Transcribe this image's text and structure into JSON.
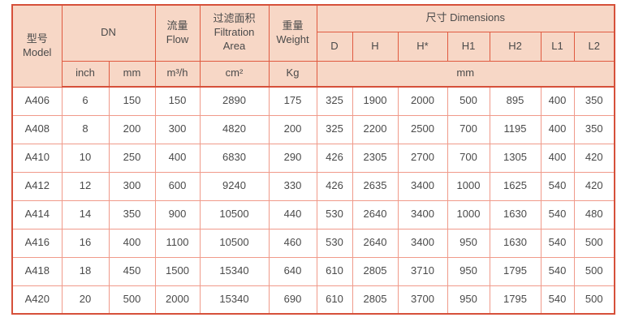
{
  "colors": {
    "header_bg": "#f7d7c6",
    "border_strong": "#d6503a",
    "border_header": "#e05a40",
    "border_light": "#f09a8a",
    "text": "#4a4a4a"
  },
  "header": {
    "model": {
      "zh": "型号",
      "en": "Model"
    },
    "dn": "DN",
    "flow": {
      "zh": "流量",
      "en": "Flow"
    },
    "filtration": {
      "zh": "过滤面积",
      "en": "Filtration Area"
    },
    "weight": {
      "zh": "重量",
      "en": "Weight"
    },
    "dimensions": "尺寸 Dimensions",
    "dim_cols": [
      "D",
      "H",
      "H*",
      "H1",
      "H2",
      "L1",
      "L2"
    ],
    "units": {
      "inch": "inch",
      "mm": "mm",
      "flow": "m³/h",
      "area": "cm²",
      "weight": "Kg",
      "dims": "mm"
    }
  },
  "rows": [
    [
      "A406",
      "6",
      "150",
      "150",
      "2890",
      "175",
      "325",
      "1900",
      "2000",
      "500",
      "895",
      "400",
      "350"
    ],
    [
      "A408",
      "8",
      "200",
      "300",
      "4820",
      "200",
      "325",
      "2200",
      "2500",
      "700",
      "1195",
      "400",
      "350"
    ],
    [
      "A410",
      "10",
      "250",
      "400",
      "6830",
      "290",
      "426",
      "2305",
      "2700",
      "700",
      "1305",
      "400",
      "420"
    ],
    [
      "A412",
      "12",
      "300",
      "600",
      "9240",
      "330",
      "426",
      "2635",
      "3400",
      "1000",
      "1625",
      "540",
      "420"
    ],
    [
      "A414",
      "14",
      "350",
      "900",
      "10500",
      "440",
      "530",
      "2640",
      "3400",
      "1000",
      "1630",
      "540",
      "480"
    ],
    [
      "A416",
      "16",
      "400",
      "1100",
      "10500",
      "460",
      "530",
      "2640",
      "3400",
      "950",
      "1630",
      "540",
      "500"
    ],
    [
      "A418",
      "18",
      "450",
      "1500",
      "15340",
      "640",
      "610",
      "2805",
      "3710",
      "950",
      "1795",
      "540",
      "500"
    ],
    [
      "A420",
      "20",
      "500",
      "2000",
      "15340",
      "690",
      "610",
      "2805",
      "3700",
      "950",
      "1795",
      "540",
      "500"
    ]
  ]
}
